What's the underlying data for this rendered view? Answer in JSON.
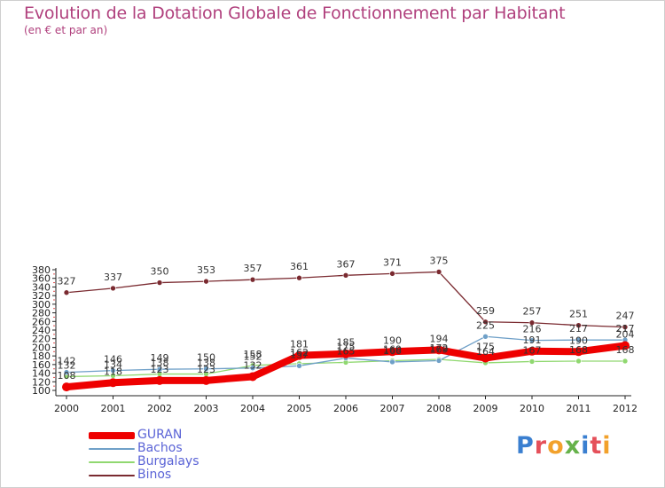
{
  "header": {
    "title": "Evolution de la Dotation Globale de Fonctionnement par Habitant",
    "subtitle": "(en € et par an)"
  },
  "logo": {
    "text": "Proxiti",
    "colors": [
      "#3a7fd0",
      "#e5505a",
      "#f2a12b",
      "#66b24a",
      "#3a7fd0",
      "#e5505a",
      "#f2a12b"
    ]
  },
  "chart_data": {
    "type": "line",
    "title": "Evolution de la Dotation Globale de Fonctionnement par Habitant",
    "subtitle": "(en € et par an)",
    "x": [
      "2000",
      "2001",
      "2002",
      "2003",
      "2004",
      "2005",
      "2006",
      "2007",
      "2008",
      "2009",
      "2010",
      "2011",
      "2012"
    ],
    "ylim": [
      100,
      380
    ],
    "yticks": [
      100,
      120,
      140,
      160,
      180,
      200,
      220,
      240,
      260,
      280,
      300,
      320,
      340,
      360,
      380
    ],
    "grid": false,
    "legend": "bottom-left",
    "series": [
      {
        "name": "Binos",
        "color": "#7a2a30",
        "values": [
          327,
          337,
          350,
          353,
          357,
          361,
          367,
          371,
          375,
          259,
          257,
          251,
          247
        ],
        "labels": [
          "327",
          "337",
          "350",
          "353",
          "357",
          "361",
          "367",
          "371",
          "375",
          "259",
          "257",
          "251",
          "247"
        ]
      },
      {
        "name": "Burgalays",
        "color": "#90d870",
        "values": [
          132,
          134,
          138,
          138,
          158,
          162,
          165,
          169,
          172,
          164,
          167,
          168,
          168
        ],
        "labels": [
          "132",
          "134",
          "138",
          "138",
          "158",
          "162",
          "165",
          "169",
          "172",
          "164",
          "167",
          "168",
          "168"
        ]
      },
      {
        "name": "Bachos",
        "color": "#6fa0c8",
        "values": [
          142,
          146,
          149,
          150,
          152,
          157,
          175,
          166,
          169,
          225,
          216,
          217,
          217
        ],
        "labels": [
          "142",
          "146",
          "149",
          "150",
          "152",
          "157",
          "175",
          "166",
          "169",
          "225",
          "216",
          "217",
          "217"
        ]
      },
      {
        "name": "GURAN",
        "color": "#ee0000",
        "values": [
          108,
          118,
          123,
          123,
          132,
          181,
          185,
          190,
          194,
          175,
          191,
          190,
          204
        ],
        "labels": [
          "108",
          "118",
          "123",
          "123",
          "132",
          "181",
          "185",
          "190",
          "194",
          "175",
          "191",
          "190",
          "204"
        ]
      }
    ],
    "legend_entries": [
      "GURAN",
      "Bachos",
      "Burgalays",
      "Binos"
    ]
  }
}
